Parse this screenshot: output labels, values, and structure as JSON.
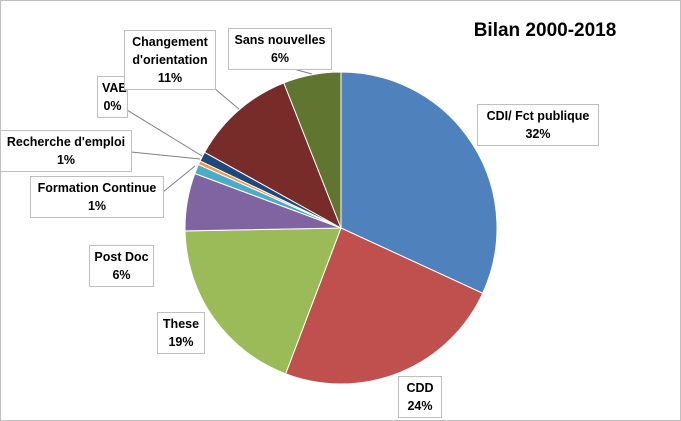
{
  "chart_data": {
    "type": "pie",
    "title": "Bilan 2000-2018",
    "categories": [
      "CDI/ Fct publique",
      "CDD",
      "These",
      "Post Doc",
      "Formation Continue",
      "VAE",
      "Recherche d'emploi",
      "Changement d'orientation",
      "Sans nouvelles"
    ],
    "values": [
      32,
      24,
      19,
      6,
      1,
      0.4,
      1,
      11,
      6
    ],
    "value_labels": [
      "32%",
      "24%",
      "19%",
      "6%",
      "1%",
      "0%",
      "1%",
      "11%",
      "6%"
    ],
    "colors": [
      "#4f81bd",
      "#c0504d",
      "#9bbb59",
      "#8064a2",
      "#4bacc6",
      "#f79646",
      "#1f497d",
      "#772c2a",
      "#5f7530"
    ]
  }
}
